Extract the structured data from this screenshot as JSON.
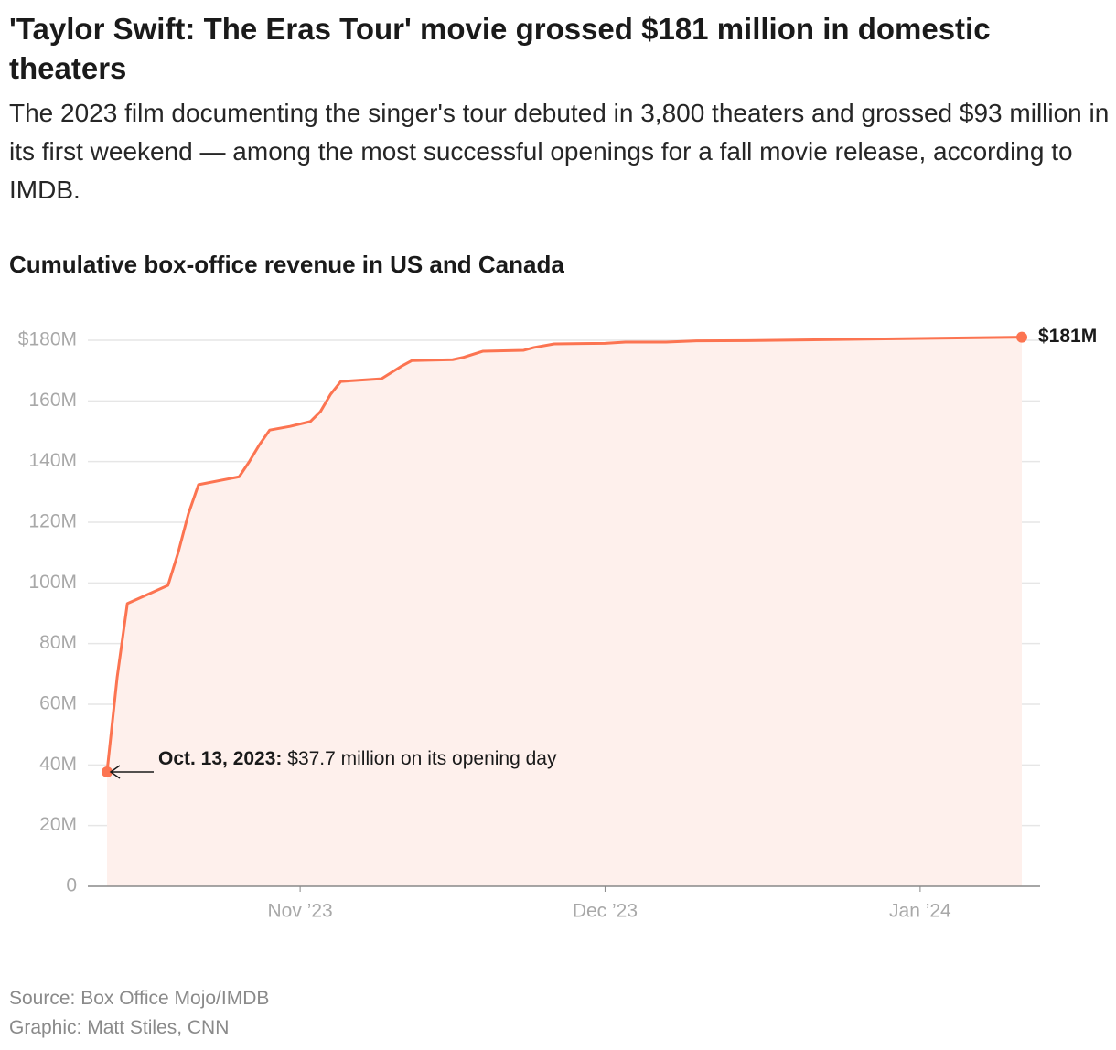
{
  "chart_data": {
    "type": "area",
    "title": "'Taylor Swift: The Eras Tour' movie grossed $181 million in domestic theaters",
    "subtitle": "The 2023 film documenting the singer's tour debuted in 3,800 theaters and grossed $93 million in its first weekend — among the most successful openings for a fall movie release, according to IMDB.",
    "chart_title": "Cumulative box-office revenue in US and Canada",
    "x": [
      "2023-10-13",
      "2023-10-14",
      "2023-10-15",
      "2023-10-19",
      "2023-10-20",
      "2023-10-21",
      "2023-10-22",
      "2023-10-26",
      "2023-10-27",
      "2023-10-28",
      "2023-10-29",
      "2023-10-31",
      "2023-11-02",
      "2023-11-03",
      "2023-11-04",
      "2023-11-05",
      "2023-11-09",
      "2023-11-10",
      "2023-11-11",
      "2023-11-12",
      "2023-11-16",
      "2023-11-17",
      "2023-11-19",
      "2023-11-23",
      "2023-11-24",
      "2023-11-26",
      "2023-12-01",
      "2023-12-03",
      "2023-12-07",
      "2023-12-10",
      "2023-12-15",
      "2024-01-11"
    ],
    "values": [
      37.7,
      69,
      93.2,
      99.2,
      110,
      122.7,
      132.4,
      135,
      140,
      145.6,
      150.4,
      151.6,
      153.2,
      156.5,
      162.2,
      166.4,
      167.3,
      169.4,
      171.5,
      173.3,
      173.6,
      174.3,
      176.4,
      176.7,
      177.6,
      178.8,
      179,
      179.4,
      179.4,
      179.8,
      179.9,
      181
    ],
    "value_labels": [
      null,
      null,
      null,
      null,
      null,
      null,
      null,
      null,
      null,
      null,
      null,
      null,
      null,
      null,
      null,
      null,
      null,
      null,
      null,
      null,
      null,
      null,
      null,
      null,
      null,
      null,
      null,
      null,
      null,
      null,
      null,
      "$181M"
    ],
    "color": "#fc7451",
    "fill_color": "#fef0ec",
    "xlim": [
      "2023-10-13",
      "2024-01-11"
    ],
    "xticks": [
      {
        "value": "2023-11-01",
        "label": "Nov ’23"
      },
      {
        "value": "2023-12-01",
        "label": "Dec ’23"
      },
      {
        "value": "2024-01-01",
        "label": "Jan ’24"
      }
    ],
    "ylim": [
      0,
      180
    ],
    "yticks": [
      0,
      {
        "value": 20,
        "label": "20M"
      },
      {
        "value": 40,
        "label": "40M"
      },
      {
        "value": 60,
        "label": "60M"
      },
      {
        "value": 80,
        "label": "80M"
      },
      {
        "value": 100,
        "label": "100M"
      },
      {
        "value": 120,
        "label": "120M"
      },
      {
        "value": 140,
        "label": "140M"
      },
      {
        "value": 160,
        "label": "160M"
      },
      {
        "value": 180,
        "label": "$180M"
      }
    ],
    "grid": true,
    "annotation": {
      "date": "Oct. 13, 2023:",
      "text": "$37.7 million on its opening day"
    },
    "source": "Source: Box Office Mojo/IMDB",
    "credit": "Graphic: Matt Stiles, CNN"
  }
}
